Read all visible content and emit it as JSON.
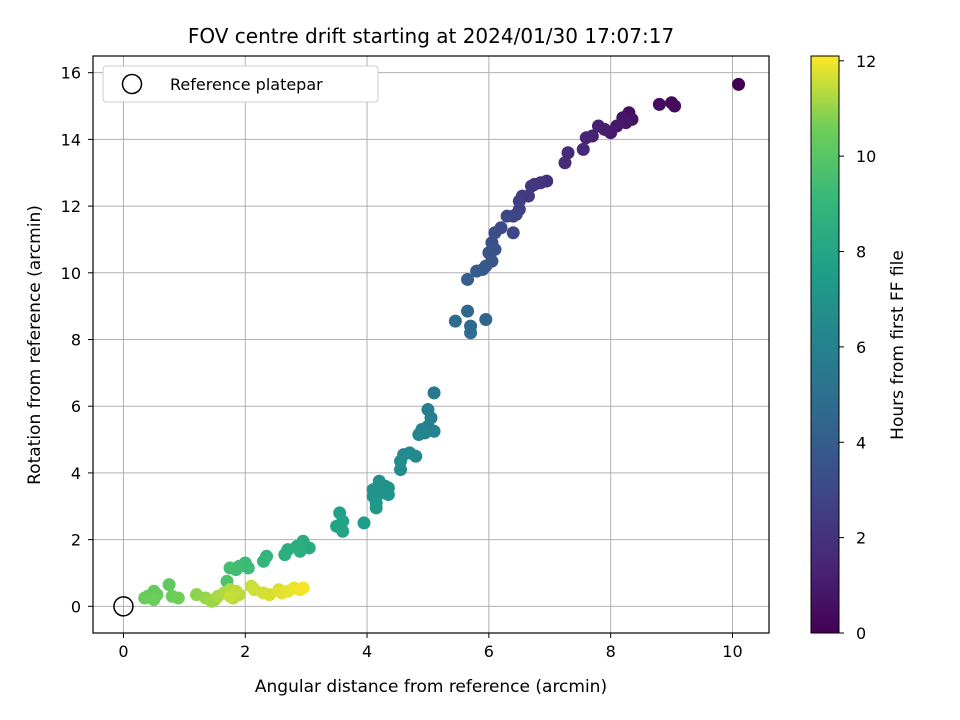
{
  "chart_data": {
    "type": "scatter",
    "title": "FOV centre drift starting at 2024/01/30 17:07:17",
    "xlabel": "Angular distance from reference (arcmin)",
    "ylabel": "Rotation from reference (arcmin)",
    "xlim": [
      -0.5,
      10.6
    ],
    "ylim": [
      -0.8,
      16.5
    ],
    "xticks": [
      0,
      2,
      4,
      6,
      8,
      10
    ],
    "yticks": [
      0,
      2,
      4,
      6,
      8,
      10,
      12,
      14,
      16
    ],
    "grid": true,
    "legend": {
      "position": "top-left",
      "entries": [
        "Reference platepar"
      ]
    },
    "reference_point": {
      "x": 0,
      "y": 0
    },
    "colorbar": {
      "label": "Hours from first FF file",
      "colormap": "viridis",
      "range": [
        0,
        12.1
      ],
      "ticks": [
        0,
        2,
        4,
        6,
        8,
        10,
        12
      ]
    },
    "points": [
      {
        "x": 10.1,
        "y": 15.65,
        "c": 0.0
      },
      {
        "x": 9.0,
        "y": 15.1,
        "c": 0.3
      },
      {
        "x": 9.05,
        "y": 15.0,
        "c": 0.35
      },
      {
        "x": 8.8,
        "y": 15.05,
        "c": 0.45
      },
      {
        "x": 8.3,
        "y": 14.8,
        "c": 0.6
      },
      {
        "x": 8.35,
        "y": 14.6,
        "c": 0.65
      },
      {
        "x": 8.2,
        "y": 14.65,
        "c": 0.75
      },
      {
        "x": 8.25,
        "y": 14.5,
        "c": 0.8
      },
      {
        "x": 8.1,
        "y": 14.4,
        "c": 0.9
      },
      {
        "x": 8.0,
        "y": 14.2,
        "c": 1.0
      },
      {
        "x": 7.9,
        "y": 14.3,
        "c": 1.1
      },
      {
        "x": 7.8,
        "y": 14.4,
        "c": 1.2
      },
      {
        "x": 7.7,
        "y": 14.1,
        "c": 1.3
      },
      {
        "x": 7.6,
        "y": 14.05,
        "c": 1.4
      },
      {
        "x": 7.55,
        "y": 13.7,
        "c": 1.5
      },
      {
        "x": 7.3,
        "y": 13.6,
        "c": 1.6
      },
      {
        "x": 7.25,
        "y": 13.3,
        "c": 1.7
      },
      {
        "x": 6.95,
        "y": 12.75,
        "c": 1.9
      },
      {
        "x": 6.85,
        "y": 12.7,
        "c": 2.0
      },
      {
        "x": 6.75,
        "y": 12.65,
        "c": 2.1
      },
      {
        "x": 6.7,
        "y": 12.6,
        "c": 2.2
      },
      {
        "x": 6.65,
        "y": 12.3,
        "c": 2.3
      },
      {
        "x": 6.55,
        "y": 12.3,
        "c": 2.4
      },
      {
        "x": 6.5,
        "y": 12.15,
        "c": 2.5
      },
      {
        "x": 6.5,
        "y": 11.9,
        "c": 2.6
      },
      {
        "x": 6.4,
        "y": 11.7,
        "c": 2.7
      },
      {
        "x": 6.45,
        "y": 11.75,
        "c": 2.8
      },
      {
        "x": 6.3,
        "y": 11.7,
        "c": 2.9
      },
      {
        "x": 6.4,
        "y": 11.2,
        "c": 3.0
      },
      {
        "x": 6.2,
        "y": 11.35,
        "c": 3.1
      },
      {
        "x": 6.1,
        "y": 11.2,
        "c": 3.2
      },
      {
        "x": 6.05,
        "y": 10.9,
        "c": 3.3
      },
      {
        "x": 6.1,
        "y": 10.7,
        "c": 3.4
      },
      {
        "x": 6.0,
        "y": 10.6,
        "c": 3.5
      },
      {
        "x": 6.05,
        "y": 10.35,
        "c": 3.6
      },
      {
        "x": 5.95,
        "y": 10.2,
        "c": 3.7
      },
      {
        "x": 5.9,
        "y": 10.1,
        "c": 3.8
      },
      {
        "x": 5.8,
        "y": 10.05,
        "c": 3.9
      },
      {
        "x": 5.65,
        "y": 9.8,
        "c": 4.0
      },
      {
        "x": 5.95,
        "y": 8.6,
        "c": 4.4
      },
      {
        "x": 5.65,
        "y": 8.85,
        "c": 4.6
      },
      {
        "x": 5.7,
        "y": 8.4,
        "c": 4.7
      },
      {
        "x": 5.7,
        "y": 8.2,
        "c": 4.75
      },
      {
        "x": 5.45,
        "y": 8.55,
        "c": 4.8
      },
      {
        "x": 5.1,
        "y": 6.4,
        "c": 5.6
      },
      {
        "x": 5.0,
        "y": 5.9,
        "c": 5.8
      },
      {
        "x": 5.05,
        "y": 5.65,
        "c": 5.9
      },
      {
        "x": 5.0,
        "y": 5.4,
        "c": 6.0
      },
      {
        "x": 5.1,
        "y": 5.25,
        "c": 6.05
      },
      {
        "x": 4.9,
        "y": 5.3,
        "c": 6.1
      },
      {
        "x": 4.85,
        "y": 5.15,
        "c": 6.15
      },
      {
        "x": 4.95,
        "y": 5.2,
        "c": 6.2
      },
      {
        "x": 4.8,
        "y": 4.5,
        "c": 6.4
      },
      {
        "x": 4.7,
        "y": 4.6,
        "c": 6.45
      },
      {
        "x": 4.6,
        "y": 4.55,
        "c": 6.5
      },
      {
        "x": 4.55,
        "y": 4.35,
        "c": 6.55
      },
      {
        "x": 4.55,
        "y": 4.1,
        "c": 6.6
      },
      {
        "x": 4.2,
        "y": 3.75,
        "c": 6.8
      },
      {
        "x": 4.3,
        "y": 3.6,
        "c": 6.85
      },
      {
        "x": 4.35,
        "y": 3.55,
        "c": 6.9
      },
      {
        "x": 4.1,
        "y": 3.5,
        "c": 6.95
      },
      {
        "x": 4.25,
        "y": 3.4,
        "c": 7.0
      },
      {
        "x": 4.35,
        "y": 3.35,
        "c": 7.05
      },
      {
        "x": 4.1,
        "y": 3.3,
        "c": 7.1
      },
      {
        "x": 4.15,
        "y": 3.1,
        "c": 7.15
      },
      {
        "x": 4.15,
        "y": 2.95,
        "c": 7.2
      },
      {
        "x": 3.95,
        "y": 2.5,
        "c": 7.5
      },
      {
        "x": 3.55,
        "y": 2.8,
        "c": 7.7
      },
      {
        "x": 3.6,
        "y": 2.55,
        "c": 7.8
      },
      {
        "x": 3.5,
        "y": 2.4,
        "c": 7.85
      },
      {
        "x": 3.6,
        "y": 2.25,
        "c": 7.9
      },
      {
        "x": 3.05,
        "y": 1.75,
        "c": 8.3
      },
      {
        "x": 2.95,
        "y": 1.95,
        "c": 8.35
      },
      {
        "x": 2.85,
        "y": 1.8,
        "c": 8.4
      },
      {
        "x": 2.9,
        "y": 1.65,
        "c": 8.45
      },
      {
        "x": 2.7,
        "y": 1.7,
        "c": 8.5
      },
      {
        "x": 2.65,
        "y": 1.55,
        "c": 8.55
      },
      {
        "x": 2.35,
        "y": 1.5,
        "c": 8.9
      },
      {
        "x": 2.3,
        "y": 1.35,
        "c": 9.0
      },
      {
        "x": 2.0,
        "y": 1.3,
        "c": 9.2
      },
      {
        "x": 2.05,
        "y": 1.15,
        "c": 9.3
      },
      {
        "x": 1.9,
        "y": 1.2,
        "c": 9.35
      },
      {
        "x": 1.85,
        "y": 1.1,
        "c": 9.4
      },
      {
        "x": 1.75,
        "y": 1.15,
        "c": 9.45
      },
      {
        "x": 1.7,
        "y": 0.75,
        "c": 9.7
      },
      {
        "x": 0.75,
        "y": 0.65,
        "c": 10.2
      },
      {
        "x": 0.5,
        "y": 0.45,
        "c": 10.3
      },
      {
        "x": 0.4,
        "y": 0.3,
        "c": 10.35
      },
      {
        "x": 0.55,
        "y": 0.35,
        "c": 10.4
      },
      {
        "x": 0.35,
        "y": 0.25,
        "c": 10.45
      },
      {
        "x": 0.5,
        "y": 0.2,
        "c": 10.5
      },
      {
        "x": 0.8,
        "y": 0.3,
        "c": 10.55
      },
      {
        "x": 0.9,
        "y": 0.25,
        "c": 10.6
      },
      {
        "x": 1.2,
        "y": 0.35,
        "c": 10.9
      },
      {
        "x": 1.35,
        "y": 0.25,
        "c": 11.0
      },
      {
        "x": 1.5,
        "y": 0.2,
        "c": 11.05
      },
      {
        "x": 1.45,
        "y": 0.15,
        "c": 11.1
      },
      {
        "x": 1.55,
        "y": 0.3,
        "c": 11.2
      },
      {
        "x": 1.65,
        "y": 0.4,
        "c": 11.25
      },
      {
        "x": 1.75,
        "y": 0.5,
        "c": 11.3
      },
      {
        "x": 1.8,
        "y": 0.25,
        "c": 11.35
      },
      {
        "x": 1.9,
        "y": 0.35,
        "c": 11.4
      },
      {
        "x": 1.85,
        "y": 0.45,
        "c": 11.45
      },
      {
        "x": 1.75,
        "y": 0.3,
        "c": 11.5
      },
      {
        "x": 2.1,
        "y": 0.6,
        "c": 11.55
      },
      {
        "x": 2.15,
        "y": 0.5,
        "c": 11.6
      },
      {
        "x": 2.3,
        "y": 0.4,
        "c": 11.65
      },
      {
        "x": 2.4,
        "y": 0.35,
        "c": 11.7
      },
      {
        "x": 2.55,
        "y": 0.5,
        "c": 11.75
      },
      {
        "x": 2.6,
        "y": 0.4,
        "c": 11.8
      },
      {
        "x": 2.7,
        "y": 0.45,
        "c": 11.85
      },
      {
        "x": 2.8,
        "y": 0.55,
        "c": 11.9
      },
      {
        "x": 2.9,
        "y": 0.5,
        "c": 11.95
      },
      {
        "x": 2.95,
        "y": 0.55,
        "c": 12.0
      }
    ]
  }
}
